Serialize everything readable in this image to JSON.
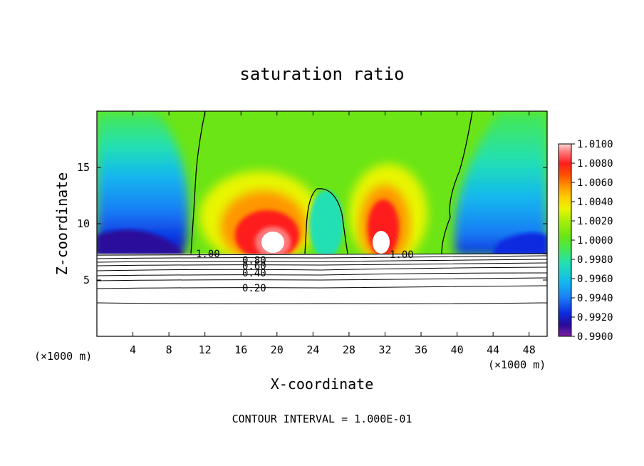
{
  "chart_data": {
    "type": "heatmap",
    "title": "saturation ratio",
    "xlabel": "X-coordinate",
    "ylabel": "Z-coordinate",
    "x_unit": "(×1000 m)",
    "z_unit": "(×1000 m)",
    "xlim": [
      0,
      50
    ],
    "ylim": [
      0,
      20
    ],
    "x_ticks": [
      4,
      8,
      12,
      16,
      20,
      24,
      28,
      32,
      36,
      40,
      44,
      48
    ],
    "y_ticks": [
      5,
      10,
      15
    ],
    "colorbar": {
      "min": 0.99,
      "max": 1.01,
      "tick_labels": [
        "1.0100",
        "1.0080",
        "1.0060",
        "1.0040",
        "1.0020",
        "1.0000",
        "0.9980",
        "0.9960",
        "0.9940",
        "0.9920",
        "0.9900"
      ],
      "colors": [
        "#7b1fa2",
        "#2a0a9a",
        "#0b2be0",
        "#1a7cf5",
        "#13b7ef",
        "#22e0b4",
        "#47e84c",
        "#6be515",
        "#a7ef0b",
        "#e8f500",
        "#ffd000",
        "#ff9600",
        "#ff4e00",
        "#ff1f1f",
        "#ff7c7c",
        "#ffd6d6"
      ]
    },
    "contour_labels": [
      "1.00",
      "0.80",
      "0.60",
      "0.40",
      "0.20",
      "1.00"
    ],
    "contour_levels": [
      0.2,
      0.4,
      0.6,
      0.8,
      1.0
    ],
    "contour_interval_text": "CONTOUR INTERVAL = 1.000E-01"
  }
}
